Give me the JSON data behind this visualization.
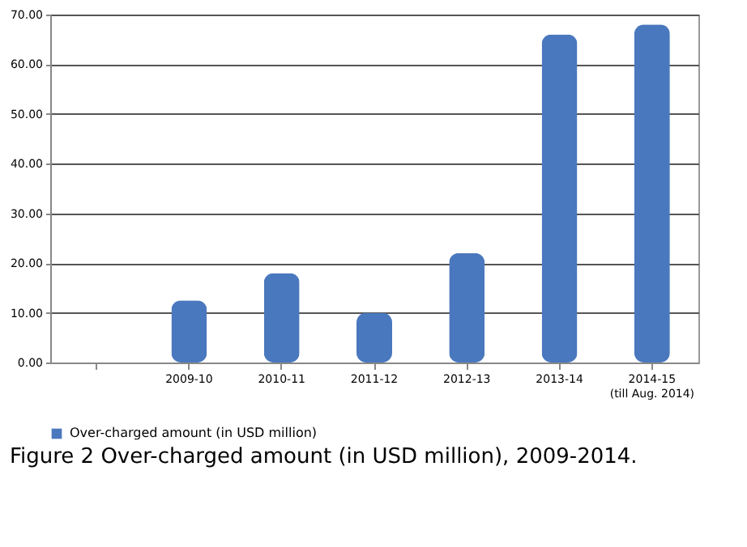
{
  "chart_data": {
    "type": "bar",
    "title": "Figure 2 Over-charged amount (in USD million), 2009-2014.",
    "categories": [
      null,
      "2009-10",
      "2010-11",
      "2011-12",
      "2012-13",
      "2013-14",
      "2014-15 (till Aug. 2014)"
    ],
    "series": [
      {
        "name": "Over-charged amount (in USD million)",
        "color": "#4a78be",
        "values": [
          null,
          12.5,
          18,
          10,
          22,
          66,
          68
        ]
      }
    ],
    "ylim": [
      0,
      70
    ],
    "yticks": [
      {
        "value": 0,
        "label": "0.00"
      },
      {
        "value": 10,
        "label": "10.00"
      },
      {
        "value": 20,
        "label": "20.00"
      },
      {
        "value": 30,
        "label": "30.00"
      },
      {
        "value": 40,
        "label": "40.00"
      },
      {
        "value": 50,
        "label": "50.00"
      },
      {
        "value": 60,
        "label": "60.00"
      },
      {
        "value": 70,
        "label": "70.00"
      }
    ],
    "grid": "y",
    "legend": "bottom"
  }
}
